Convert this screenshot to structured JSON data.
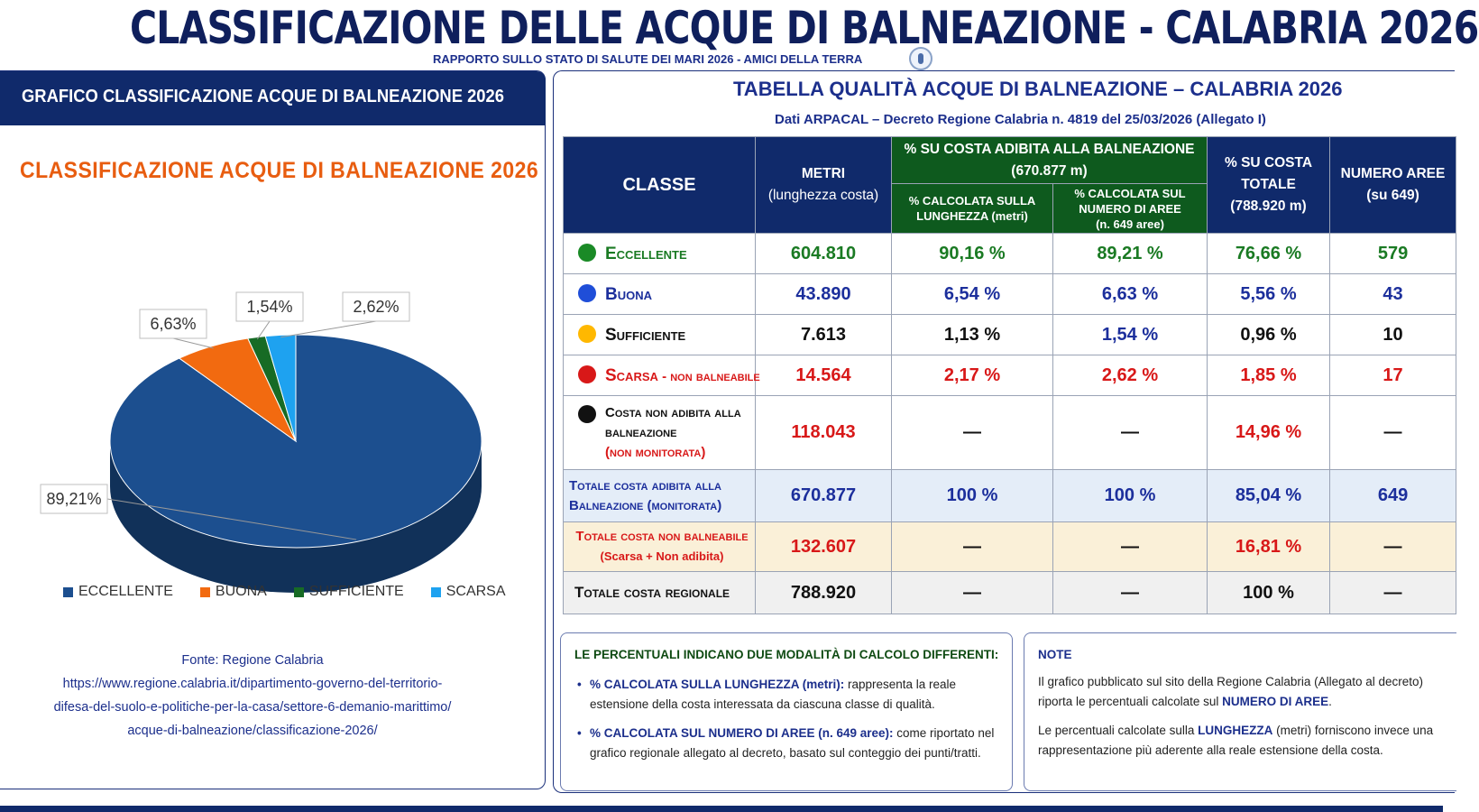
{
  "header": {
    "title": "CLASSIFICAZIONE DELLE ACQUE DI BALNEAZIONE - CALABRIA 2026",
    "subtitle": "RAPPORTO SULLO STATO DI SALUTE DEI MARI 2026 - AMICI DELLA TERRA"
  },
  "left_panel": {
    "header": "GRAFICO CLASSIFICAZIONE ACQUE DI BALNEAZIONE 2026",
    "source_label": "Fonte: Regione Calabria",
    "source_url_lines": [
      "https://www.regione.calabria.it/dipartimento-governo-del-territorio-",
      "difesa-del-suolo-e-politiche-per-la-casa/settore-6-demanio-marittimo/",
      "acque-di-balneazione/classificazione-2026/"
    ]
  },
  "chart_data": {
    "type": "pie",
    "title": "CLASSIFICAZIONE ACQUE DI BALNEAZIONE 2026",
    "categories": [
      "ECCELLENTE",
      "BUONA",
      "SUFFICIENTE",
      "SCARSA"
    ],
    "values": [
      89.21,
      6.63,
      1.54,
      2.62
    ],
    "data_labels": [
      "89,21%",
      "6,63%",
      "1,54%",
      "2,62%"
    ],
    "colors": [
      "#1c4f8f",
      "#f26a10",
      "#176b25",
      "#1ea2f0"
    ],
    "legend_placement": "bottom",
    "three_d": true
  },
  "table": {
    "title": "TABELLA QUALITÀ ACQUE DI BALNEAZIONE – CALABRIA 2026",
    "subtitle": "Dati ARPACAL – Decreto Regione Calabria n. 4819 del 25/03/2026 (Allegato I)",
    "headers": {
      "classe": "CLASSE",
      "metri": "METRI",
      "metri_sub": "(lunghezza costa)",
      "group": "% SU COSTA ADIBITA ALLA BALNEAZIONE",
      "group_sub": "(670.877 m)",
      "pct_len_1": "% CALCOLATA SULLA",
      "pct_len_2": "LUNGHEZZA (metri)",
      "pct_num_1": "% CALCOLATA SUL",
      "pct_num_2": "NUMERO DI AREE",
      "pct_num_3": "(n. 649 aree)",
      "pct_tot_1": "% SU COSTA",
      "pct_tot_2": "TOTALE",
      "pct_tot_3": "(788.920 m)",
      "num_1": "NUMERO AREE",
      "num_2": "(su 649)"
    },
    "rows": [
      {
        "label": "Eccellente",
        "metri": "604.810",
        "pct_len": "90,16 %",
        "pct_num": "89,21 %",
        "pct_tot": "76,66 %",
        "num": "579",
        "dot_color": "#1a8a26"
      },
      {
        "label": "Buona",
        "metri": "43.890",
        "pct_len": "6,54 %",
        "pct_num": "6,63 %",
        "pct_tot": "5,56 %",
        "num": "43",
        "dot_color": "#1f4ed8"
      },
      {
        "label": "Sufficiente",
        "metri": "7.613",
        "pct_len": "1,13 %",
        "pct_num": "1,54 %",
        "pct_tot": "0,96 %",
        "num": "10",
        "dot_color": "#ffb800"
      },
      {
        "label": "Scarsa",
        "label_suffix": " - non balneabile",
        "metri": "14.564",
        "pct_len": "2,17 %",
        "pct_num": "2,62 %",
        "pct_tot": "1,85 %",
        "num": "17",
        "dot_color": "#d81818"
      }
    ],
    "row_costa": {
      "l1": "Costa non adibita alla",
      "l2": "balneazione",
      "l3": "(non monitorata)",
      "metri": "118.043",
      "pct_len": "—",
      "pct_num": "—",
      "pct_tot": "14,96 %",
      "num": "—"
    },
    "row_totale_adibita": {
      "l1": "Totale costa adibita alla",
      "l2": "Balneazione (monitorata)",
      "metri": "670.877",
      "pct_len": "100 %",
      "pct_num": "100 %",
      "pct_tot": "85,04 %",
      "num": "649"
    },
    "row_non_balneabile": {
      "l1": "Totale costa non balneabile",
      "l2": "(Scarsa + Non adibita)",
      "metri": "132.607",
      "pct_len": "—",
      "pct_num": "—",
      "pct_tot": "16,81 %",
      "num": "—"
    },
    "row_regionale": {
      "l1": "Totale costa regionale",
      "metri": "788.920",
      "pct_len": "—",
      "pct_num": "—",
      "pct_tot": "100 %",
      "num": "—"
    }
  },
  "box_left": {
    "title": "LE PERCENTUALI INDICANO DUE MODALITÀ DI CALCOLO DIFFERENTI:",
    "b1_bold": "% CALCOLATA SULLA LUNGHEZZA (metri):",
    "b1_text": " rappresenta la reale estensione della costa interessata da ciascuna classe di qualità.",
    "b2_bold": "% CALCOLATA SUL NUMERO DI AREE (n. 649 aree):",
    "b2_text": " come riportato nel grafico regionale allegato al decreto, basato sul conteggio dei punti/tratti."
  },
  "box_right": {
    "title": "NOTE",
    "p1_a": "Il grafico pubblicato sul sito della Regione Calabria (Allegato al decreto) riporta le percentuali calcolate sul ",
    "p1_bold": "NUMERO DI AREE",
    "p1_b": ".",
    "p2_a": "Le percentuali calcolate sulla ",
    "p2_bold": "LUNGHEZZA",
    "p2_b": " (metri) forniscono invece una rappresentazione più aderente alla reale estensione della costa."
  }
}
